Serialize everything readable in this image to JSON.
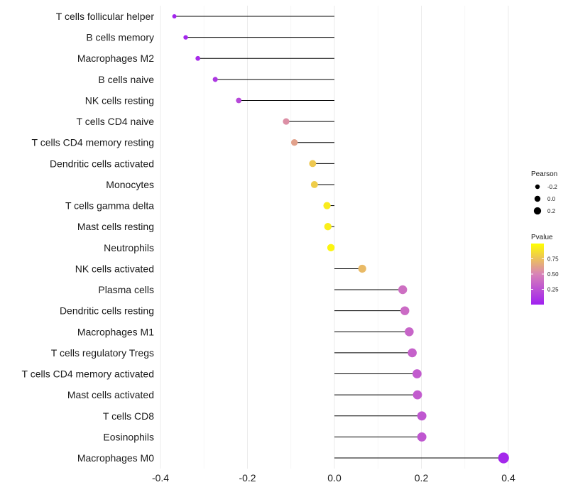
{
  "chart_data": {
    "type": "lollipop",
    "categories": [
      "T cells follicular helper",
      "B cells memory",
      "Macrophages M2",
      "B cells naive",
      "NK cells resting",
      "T cells CD4 naive",
      "T cells CD4 memory resting",
      "Dendritic cells activated",
      "Monocytes",
      "T cells gamma delta",
      "Mast cells resting",
      "Neutrophils",
      "NK cells activated",
      "Plasma cells",
      "Dendritic cells resting",
      "Macrophages M1",
      "T cells regulatory  Tregs ",
      "T cells CD4 memory activated",
      "Mast cells activated",
      "T cells CD8",
      "Eosinophils",
      "Macrophages M0"
    ],
    "values": [
      -0.368,
      -0.342,
      -0.314,
      -0.274,
      -0.22,
      -0.111,
      -0.092,
      -0.05,
      -0.046,
      -0.017,
      -0.015,
      -0.008,
      0.064,
      0.157,
      0.162,
      0.172,
      0.179,
      0.19,
      0.191,
      0.201,
      0.201,
      0.389
    ],
    "pvalues": [
      0.02,
      0.03,
      0.06,
      0.12,
      0.2,
      0.55,
      0.62,
      0.78,
      0.8,
      0.92,
      0.93,
      0.96,
      0.72,
      0.4,
      0.38,
      0.35,
      0.33,
      0.3,
      0.3,
      0.28,
      0.28,
      0.04
    ],
    "xlim": [
      -0.4,
      0.4
    ],
    "xticks": [
      -0.4,
      -0.2,
      0.0,
      0.2,
      0.4
    ],
    "xtick_labels": [
      "-0.4",
      "-0.2",
      "0.0",
      "0.2",
      "0.4"
    ],
    "baseline": 0.0,
    "grid": true,
    "legend_position": "right",
    "size_legend": {
      "title": "Pearson",
      "values": [
        -0.2,
        0.0,
        0.2
      ],
      "labels": [
        "-0.2",
        "0.0",
        "0.2"
      ]
    },
    "color_legend": {
      "title": "Pvalue",
      "range": [
        0.0,
        1.0
      ],
      "ticks": [
        0.25,
        0.5,
        0.75
      ],
      "tick_labels": [
        "0.25",
        "0.50",
        "0.75"
      ],
      "low_color": "#a020f0",
      "mid_color": "#d883b7",
      "high_color": "#ffff00"
    }
  }
}
